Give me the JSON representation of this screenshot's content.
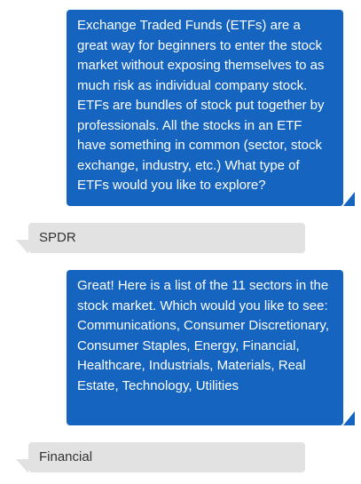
{
  "messages": [
    {
      "role": "bot",
      "text": "Exchange Traded Funds (ETFs) are a great way for beginners to enter the stock market without exposing themselves to as much risk as individual company stock. ETFs are bundles of stock put together by professionals. All the stocks in an ETF have something in common (sector, stock exchange, industry, etc.) What type of ETFs would you like to explore?"
    },
    {
      "role": "user",
      "text": "SPDR"
    },
    {
      "role": "bot",
      "text": "Great! Here is a list of the 11 sectors in the stock market. Which would you like to see: Communications, Consumer Discretionary, Consumer Staples, Energy, Financial, Healthcare, Industrials, Materials, Real Estate, Technology, Utilities"
    },
    {
      "role": "user",
      "text": "Financial"
    }
  ],
  "colors": {
    "bot_bubble": "#1565c0",
    "user_bubble": "#e2e2e2",
    "bot_text": "#ffffff",
    "user_text": "#333333"
  }
}
